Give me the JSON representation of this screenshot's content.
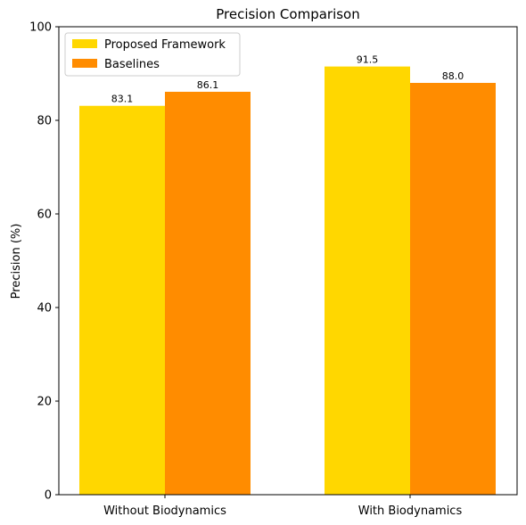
{
  "chart_data": {
    "type": "bar",
    "title": "Precision Comparison",
    "xlabel": "",
    "ylabel": "Precision (%)",
    "categories": [
      "Without Biodynamics",
      "With Biodynamics"
    ],
    "series": [
      {
        "name": "Proposed Framework",
        "values": [
          83.1,
          91.5
        ],
        "color": "#FFD700"
      },
      {
        "name": "Baselines",
        "values": [
          86.1,
          88.0
        ],
        "color": "#FF8C00"
      }
    ],
    "value_labels": [
      [
        "83.1",
        "91.5"
      ],
      [
        "86.1",
        "88.0"
      ]
    ],
    "ylim": [
      0,
      100
    ],
    "yticks": [
      0,
      20,
      40,
      60,
      80,
      100
    ],
    "legend_position": "top-left",
    "grid": false
  }
}
